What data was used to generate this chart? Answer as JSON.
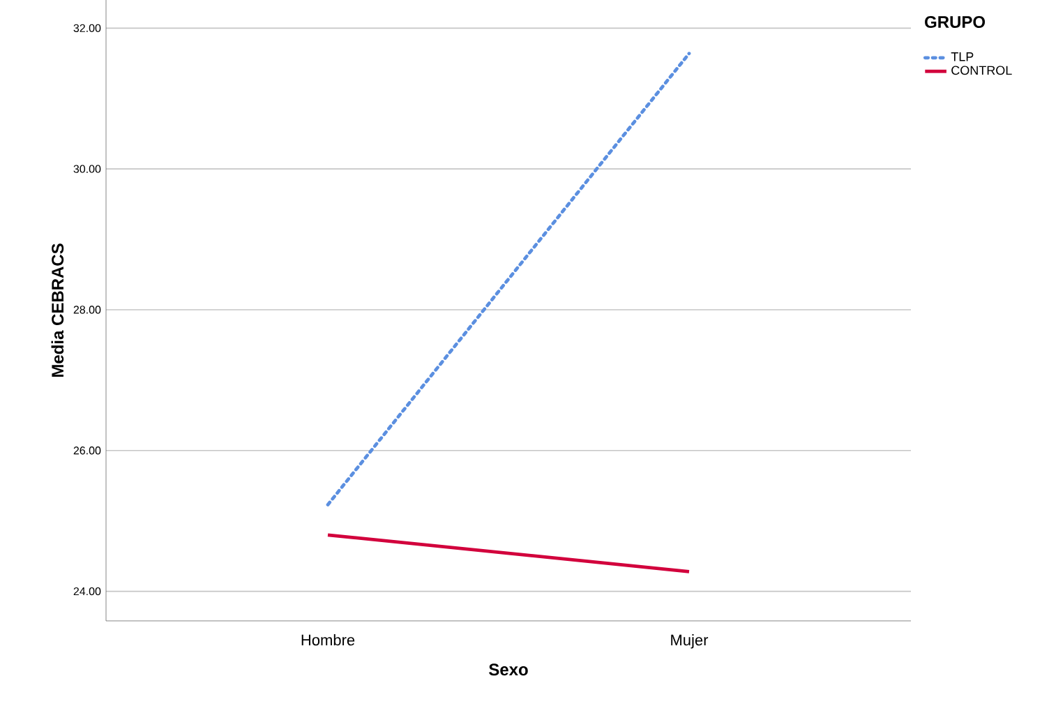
{
  "chart_data": {
    "type": "line",
    "xlabel": "Sexo",
    "ylabel": "Media CEBRACS",
    "legend_title": "GRUPO",
    "categories": [
      "Hombre",
      "Mujer"
    ],
    "series": [
      {
        "name": "TLP",
        "color": "#5b8fe0",
        "line_style": "dotted",
        "values": [
          25.23,
          31.64
        ]
      },
      {
        "name": "CONTROL",
        "color": "#d2003c",
        "line_style": "solid",
        "values": [
          24.8,
          24.28
        ]
      }
    ],
    "ylim": [
      23.58,
      32.4
    ],
    "yticks": [
      {
        "value": 24,
        "label": "24.00"
      },
      {
        "value": 26,
        "label": "26.00"
      },
      {
        "value": 28,
        "label": "28.00"
      },
      {
        "value": 30,
        "label": "30.00"
      },
      {
        "value": 32,
        "label": "32.00"
      }
    ],
    "grid": "y",
    "legend": "top right"
  }
}
